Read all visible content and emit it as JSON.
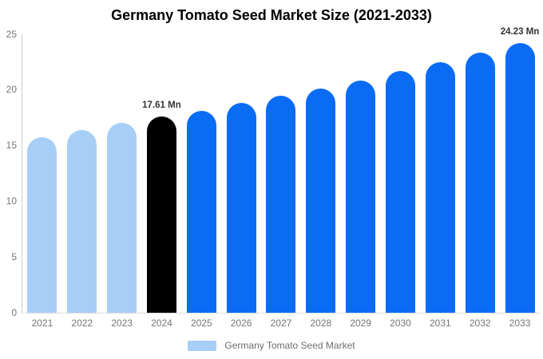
{
  "title": "Germany Tomato Seed Market Size (2021-2033)",
  "legend": {
    "label": "Germany Tomato Seed Market",
    "swatch_color": "#A7CEF7"
  },
  "chart_data": {
    "type": "bar",
    "title": "Germany Tomato Seed Market Size (2021-2033)",
    "categories": [
      "2021",
      "2022",
      "2023",
      "2024",
      "2025",
      "2026",
      "2027",
      "2028",
      "2029",
      "2030",
      "2031",
      "2032",
      "2033"
    ],
    "values": [
      15.78,
      16.38,
      17.02,
      17.61,
      18.1,
      18.81,
      19.48,
      20.15,
      20.87,
      21.68,
      22.51,
      23.35,
      24.23
    ],
    "unit": "Mn",
    "bar_roles": [
      "historical",
      "historical",
      "historical",
      "base_year",
      "forecast",
      "forecast",
      "forecast",
      "forecast",
      "forecast",
      "forecast",
      "forecast",
      "forecast",
      "forecast"
    ],
    "colors": {
      "historical": "#A7CEF7",
      "base_year": "#000000",
      "forecast": "#0A6CF5"
    },
    "data_labels": {
      "2024": "17.61 Mn",
      "2033": "24.23 Mn"
    },
    "xlabel": "",
    "ylabel": "",
    "ylim": [
      0,
      25
    ],
    "yticks": [
      0,
      5,
      10,
      15,
      20,
      25
    ],
    "grid": false,
    "legend_position": "bottom",
    "axis_text_color": "#757575",
    "axis_line_color": "#cccccc",
    "data_label_color": "#333333",
    "background_color": "#ffffff"
  }
}
